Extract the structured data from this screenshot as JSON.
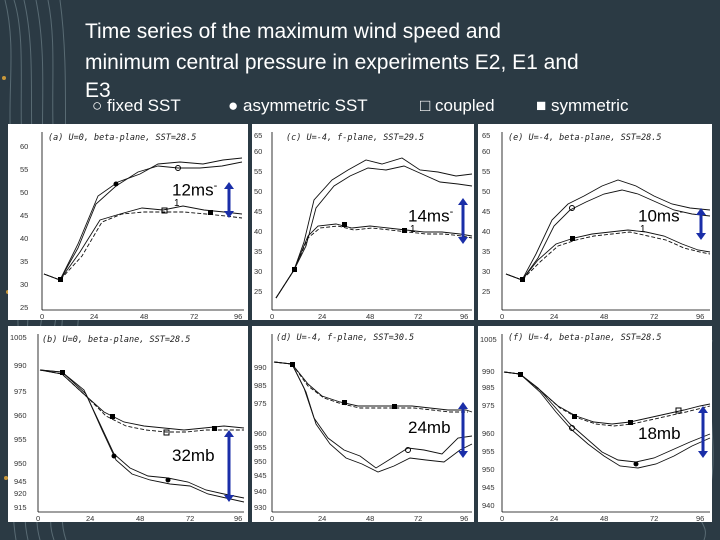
{
  "slide": {
    "title_lines": [
      "Time series of the maximum wind speed and",
      "minimum central pressure in experiments E2, E1 and",
      "E3"
    ]
  },
  "legend": [
    {
      "symbol": "○",
      "label": "fixed SST"
    },
    {
      "symbol": "●",
      "label": "asymmetric SST"
    },
    {
      "symbol": "□",
      "label": "coupled"
    },
    {
      "symbol": "■",
      "label": "symmetric"
    }
  ],
  "panels": [
    {
      "id": "a",
      "title": "(a) U=0, beta-plane, SST=28.5",
      "yticks": [
        "25",
        "30",
        "35",
        "40",
        "45",
        "50",
        "55",
        "60"
      ],
      "xticks": [
        "0",
        "24",
        "48",
        "72",
        "96"
      ]
    },
    {
      "id": "c",
      "title": "(c) U=-4, f-plane, SST=29.5",
      "yticks": [
        "25",
        "30",
        "35",
        "40",
        "45",
        "50",
        "55",
        "60",
        "65"
      ],
      "xticks": [
        "0",
        "24",
        "48",
        "72",
        "96"
      ]
    },
    {
      "id": "e",
      "title": "(e) U=-4, beta-plane, SST=28.5",
      "yticks": [
        "25",
        "30",
        "35",
        "40",
        "45",
        "50",
        "55",
        "60",
        "65"
      ],
      "xticks": [
        "0",
        "24",
        "48",
        "72",
        "96"
      ]
    },
    {
      "id": "b",
      "title": "(b) U=0, beta-plane, SST=28.5",
      "yticks": [
        "1005",
        "990",
        "975",
        "960",
        "955",
        "950",
        "945",
        "920",
        "915"
      ],
      "xticks": [
        "0",
        "24",
        "48",
        "72",
        "96"
      ]
    },
    {
      "id": "d",
      "title": "(d) U=-4, f-plane, SST=30.5",
      "yticks": [
        "990",
        "985",
        "975",
        "960",
        "955",
        "950",
        "945",
        "940",
        "930"
      ],
      "xticks": [
        "0",
        "24",
        "48",
        "72",
        "96"
      ]
    },
    {
      "id": "f",
      "title": "(f) U=-4, beta-plane, SST=28.5",
      "yticks": [
        "1005",
        "990",
        "985",
        "975",
        "960",
        "955",
        "950",
        "945",
        "940"
      ],
      "xticks": [
        "0",
        "24",
        "48",
        "72",
        "96"
      ]
    }
  ],
  "annotations": {
    "a": {
      "value": "12ms",
      "sup": "-",
      "sub": "1"
    },
    "c": {
      "value": "14ms",
      "sup": "-",
      "sub": "1"
    },
    "e": {
      "value": "10ms",
      "sup": "-",
      "sub": "1"
    },
    "b": {
      "value": "32mb"
    },
    "d": {
      "value": "24mb"
    },
    "f": {
      "value": "18mb"
    }
  },
  "colors": {
    "background": "#2b3a44",
    "arrow": "#1a2ea8",
    "text": "#ffffff"
  }
}
